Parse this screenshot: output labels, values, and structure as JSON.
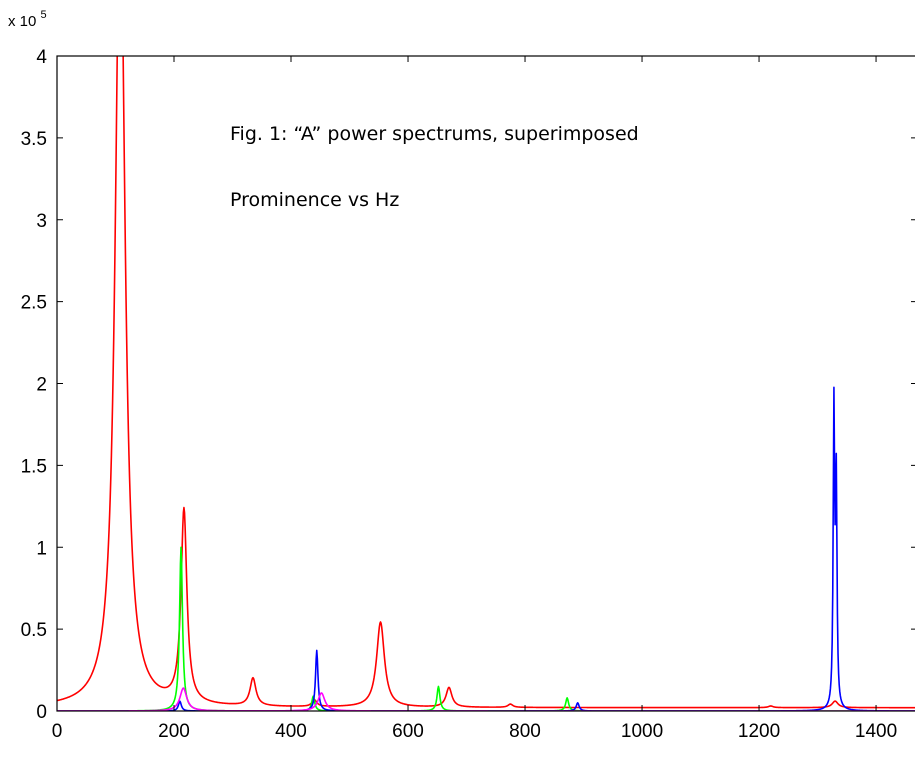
{
  "chart_data": {
    "type": "line",
    "title": "",
    "xlabel": "",
    "ylabel": "",
    "xlim": [
      0,
      1470
    ],
    "ylim": [
      0,
      4
    ],
    "y_multiplier_label": {
      "base": "x 10",
      "exponent": "5"
    },
    "x_ticks": [
      {
        "value": 0,
        "label": "0"
      },
      {
        "value": 200,
        "label": "200"
      },
      {
        "value": 400,
        "label": "400"
      },
      {
        "value": 600,
        "label": "600"
      },
      {
        "value": 800,
        "label": "800"
      },
      {
        "value": 1000,
        "label": "1000"
      },
      {
        "value": 1200,
        "label": "1200"
      },
      {
        "value": 1400,
        "label": "1400"
      }
    ],
    "y_ticks": [
      {
        "value": 0,
        "label": "0"
      },
      {
        "value": 0.5,
        "label": "0.5"
      },
      {
        "value": 1,
        "label": "1"
      },
      {
        "value": 1.5,
        "label": "1.5"
      },
      {
        "value": 2,
        "label": "2"
      },
      {
        "value": 2.5,
        "label": "2.5"
      },
      {
        "value": 3,
        "label": "3"
      },
      {
        "value": 3.5,
        "label": "3.5"
      },
      {
        "value": 4,
        "label": "4"
      }
    ],
    "grid": false,
    "legend": "none",
    "annotations": [
      "Fig. 1: “A” power spectrums, superimposed",
      "Prominence vs Hz"
    ],
    "series": [
      {
        "color": "#ff0000",
        "baseline": 0.02,
        "peaks": [
          {
            "x": 108,
            "y": 5.0,
            "width": 10
          },
          {
            "x": 217,
            "y": 1.18,
            "width": 6
          },
          {
            "x": 335,
            "y": 0.17,
            "width": 6
          },
          {
            "x": 440,
            "y": 0.04,
            "width": 5
          },
          {
            "x": 553,
            "y": 0.52,
            "width": 8
          },
          {
            "x": 670,
            "y": 0.12,
            "width": 6
          },
          {
            "x": 775,
            "y": 0.02,
            "width": 5
          },
          {
            "x": 1220,
            "y": 0.01,
            "width": 5
          },
          {
            "x": 1330,
            "y": 0.04,
            "width": 6
          }
        ]
      },
      {
        "color": "#00ff00",
        "baseline": 0,
        "peaks": [
          {
            "x": 212,
            "y": 1.0,
            "width": 3
          },
          {
            "x": 438,
            "y": 0.09,
            "width": 3
          },
          {
            "x": 652,
            "y": 0.15,
            "width": 3
          },
          {
            "x": 872,
            "y": 0.08,
            "width": 3
          }
        ]
      },
      {
        "color": "#0000ff",
        "baseline": 0,
        "peaks": [
          {
            "x": 210,
            "y": 0.06,
            "width": 3
          },
          {
            "x": 444,
            "y": 0.37,
            "width": 2.5
          },
          {
            "x": 890,
            "y": 0.05,
            "width": 3
          },
          {
            "x": 1328,
            "y": 1.81,
            "width": 1.5
          },
          {
            "x": 1332,
            "y": 1.35,
            "width": 1.5
          }
        ]
      },
      {
        "color": "#ff00ff",
        "baseline": 0,
        "peaks": [
          {
            "x": 216,
            "y": 0.14,
            "width": 7
          },
          {
            "x": 452,
            "y": 0.11,
            "width": 7
          }
        ]
      }
    ]
  }
}
